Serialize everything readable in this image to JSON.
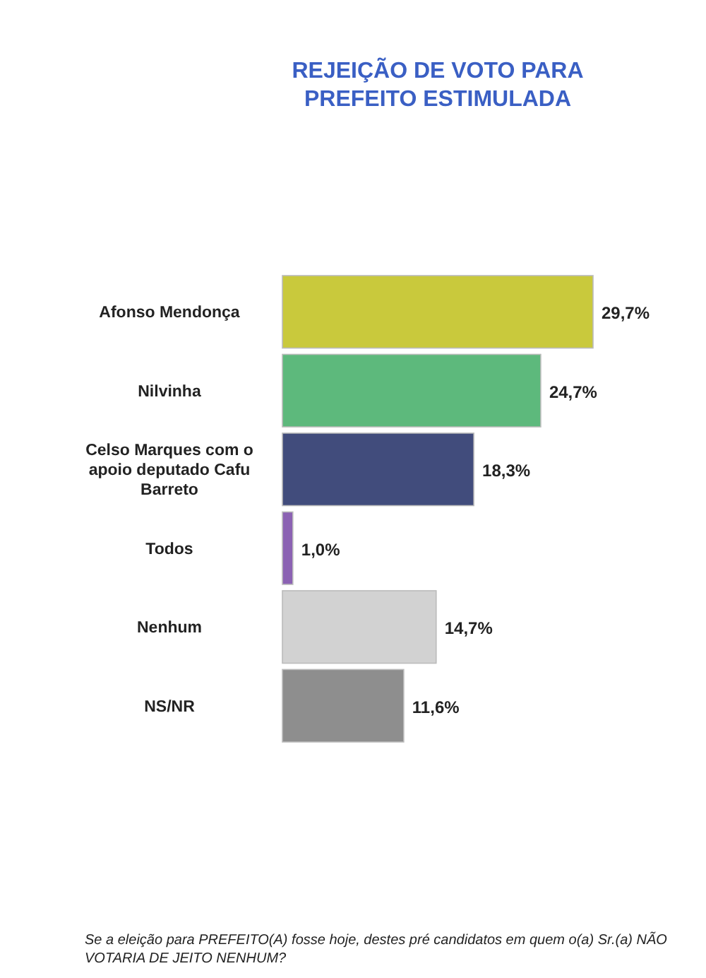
{
  "chart_data": {
    "type": "bar",
    "orientation": "horizontal",
    "title": "REJEIÇÃO DE VOTO PARA PREFEITO ESTIMULADA",
    "categories": [
      "Afonso Mendonça",
      "Nilvinha",
      "Celso Marques  com o apoio deputado Cafu Barreto",
      "Todos",
      "Nenhum",
      "NS/NR"
    ],
    "values": [
      29.7,
      24.7,
      18.3,
      1.0,
      14.7,
      11.6
    ],
    "colors": [
      "#c9c93c",
      "#5db97c",
      "#414c7c",
      "#8b62b3",
      "#d2d2d2",
      "#8e8e8e"
    ],
    "value_labels": [
      "29,7%",
      "24,7%",
      "18,3%",
      "1,0%",
      "14,7%",
      "11,6%"
    ],
    "annotations": [
      "Se a eleição para PREFEITO(A) fosse hoje, destes pré candidatos em quem o(a) Sr.(a) NÃO VOTARIA DE JEITO NENHUM?"
    ]
  }
}
